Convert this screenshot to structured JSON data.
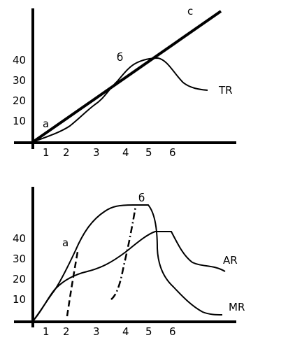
{
  "top_chart": {
    "y_ticks": [
      "10",
      "20",
      "30",
      "40"
    ],
    "x_ticks": [
      "1",
      "2",
      "3",
      "4",
      "5",
      "6"
    ],
    "line_label": "c",
    "curve_label": "TR",
    "point_a": "а",
    "point_b": "б"
  },
  "bottom_chart": {
    "y_ticks": [
      "10",
      "20",
      "30",
      "40"
    ],
    "x_ticks": [
      "1",
      "2",
      "3",
      "4",
      "5",
      "6"
    ],
    "ar_label": "AR",
    "mr_label": "MR",
    "point_a": "а",
    "point_b": "б"
  },
  "colors": {
    "ink": "#000000",
    "background": "#ffffff"
  }
}
